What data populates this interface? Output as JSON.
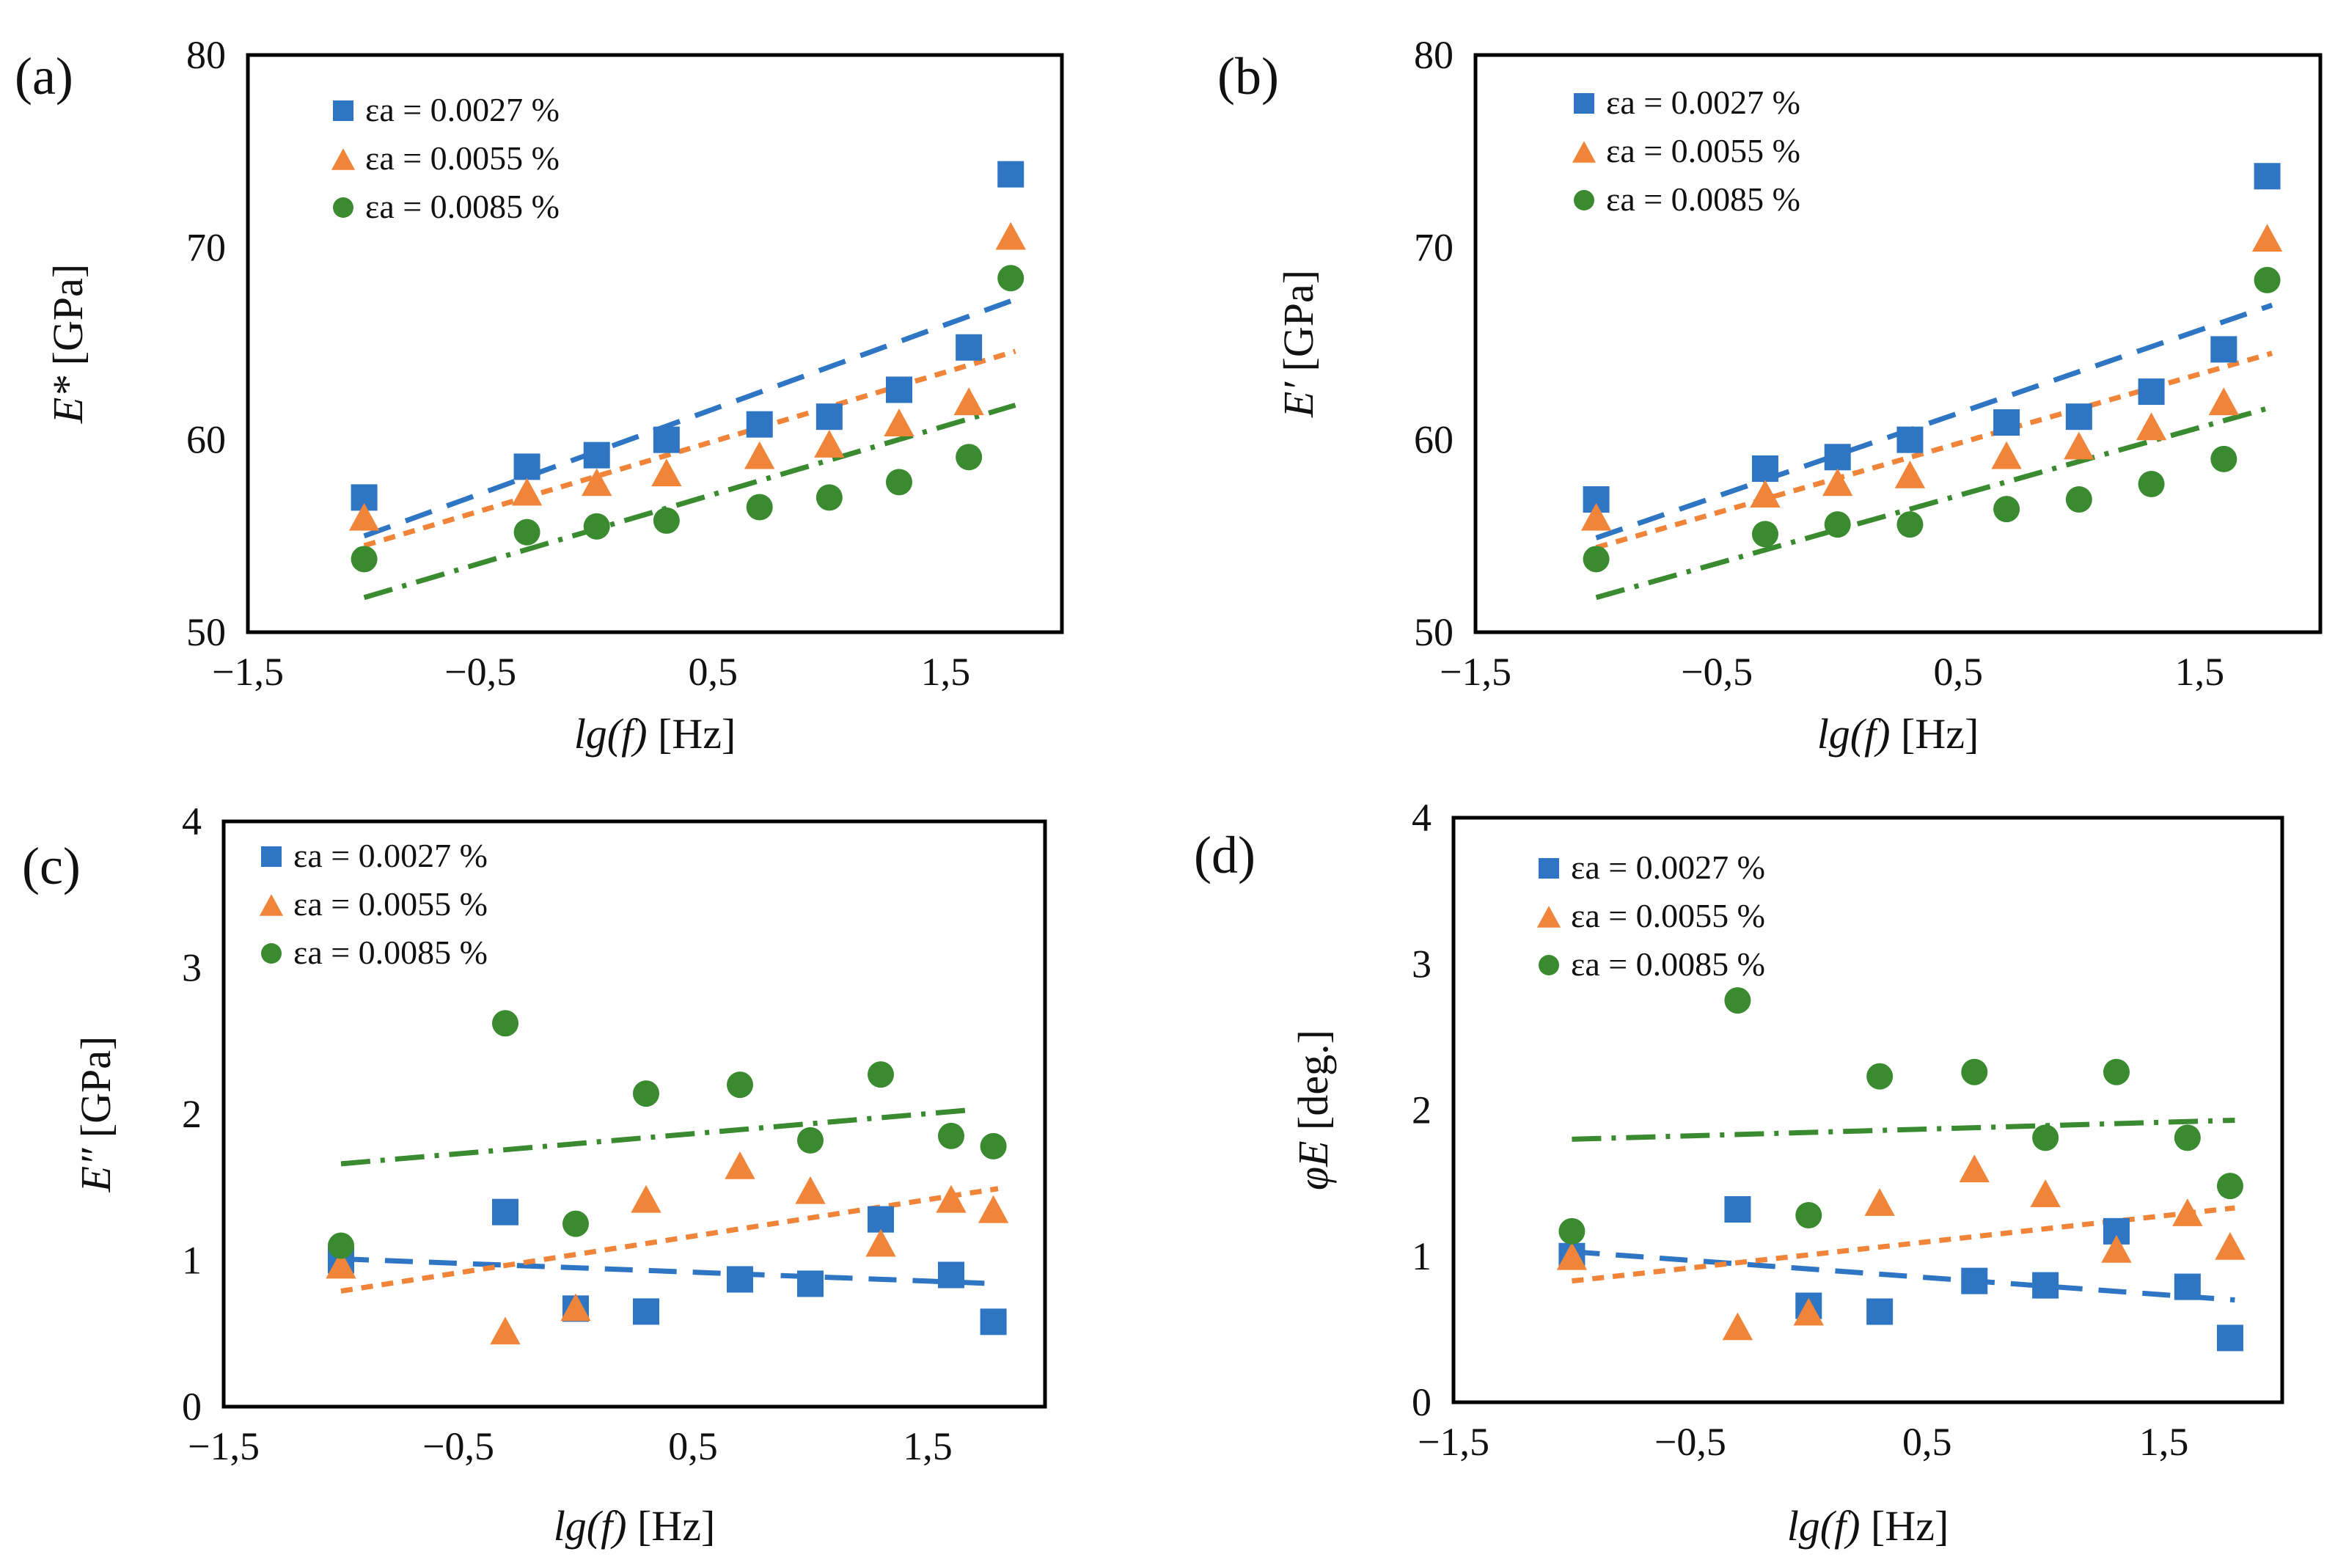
{
  "figure": {
    "colors": {
      "series1": "#2e75c4",
      "series2": "#f08439",
      "series3": "#3a8a2f"
    },
    "panels": [
      {
        "id": "a",
        "label": "(a)",
        "ylabel_main": "E*",
        "ylabel_unit": " [GPa]",
        "xlabel_main": "lg(f)",
        "xlabel_unit": " [Hz]",
        "xlim": [
          -1.5,
          2.0
        ],
        "ylim": [
          50,
          80
        ],
        "xticks": [
          -1.5,
          -0.5,
          0.5,
          1.5
        ],
        "xtick_labels": [
          "−1,5",
          "−0,5",
          "0,5",
          "1,5"
        ],
        "yticks": [
          50,
          60,
          70,
          80
        ],
        "ytick_labels": [
          "50",
          "60",
          "70",
          "80"
        ],
        "legend": [
          "εa = 0.0027 %",
          "εa = 0.0055 %",
          "εa = 0.0085 %"
        ],
        "series": [
          {
            "name": "εa = 0.0027 %",
            "marker": "square",
            "color": "#2e75c4",
            "x": [
              -1.0,
              -0.3,
              0.0,
              0.3,
              0.7,
              1.0,
              1.3,
              1.6,
              1.78
            ],
            "y": [
              57.0,
              58.6,
              59.2,
              60.0,
              60.8,
              61.2,
              62.6,
              64.8,
              73.8
            ],
            "trend": {
              "x": [
                -1.0,
                1.8
              ],
              "y": [
                55.0,
                67.3
              ],
              "dash": "long"
            }
          },
          {
            "name": "εa = 0.0055 %",
            "marker": "triangle",
            "color": "#f08439",
            "x": [
              -1.0,
              -0.3,
              0.0,
              0.3,
              0.7,
              1.0,
              1.3,
              1.6,
              1.78
            ],
            "y": [
              56.0,
              57.3,
              57.8,
              58.3,
              59.2,
              59.8,
              60.9,
              62.0,
              70.6
            ],
            "trend": {
              "x": [
                -1.0,
                1.8
              ],
              "y": [
                54.5,
                64.6
              ],
              "dash": "short"
            }
          },
          {
            "name": "εa = 0.0085 %",
            "marker": "circle",
            "color": "#3a8a2f",
            "x": [
              -1.0,
              -0.3,
              0.0,
              0.3,
              0.7,
              1.0,
              1.3,
              1.6,
              1.78
            ],
            "y": [
              53.8,
              55.2,
              55.5,
              55.8,
              56.5,
              57.0,
              57.8,
              59.1,
              68.4
            ],
            "trend": {
              "x": [
                -1.0,
                1.8
              ],
              "y": [
                51.8,
                61.8
              ],
              "dash": "dashdot"
            }
          }
        ]
      },
      {
        "id": "b",
        "label": "(b)",
        "ylabel_main": "E′",
        "ylabel_unit": " [GPa]",
        "xlabel_main": "lg(f)",
        "xlabel_unit": " [Hz]",
        "xlim": [
          -1.5,
          2.0
        ],
        "ylim": [
          50,
          80
        ],
        "xticks": [
          -1.5,
          -0.5,
          0.5,
          1.5
        ],
        "xtick_labels": [
          "−1,5",
          "−0,5",
          "0,5",
          "1,5"
        ],
        "yticks": [
          50,
          60,
          70,
          80
        ],
        "ytick_labels": [
          "50",
          "60",
          "70",
          "80"
        ],
        "legend": [
          "εa = 0.0027 %",
          "εa = 0.0055 %",
          "εa = 0.0085 %"
        ],
        "series": [
          {
            "name": "εa = 0.0027 %",
            "marker": "square",
            "color": "#2e75c4",
            "x": [
              -1.0,
              -0.3,
              0.0,
              0.3,
              0.7,
              1.0,
              1.3,
              1.6,
              1.78
            ],
            "y": [
              56.9,
              58.5,
              59.1,
              60.0,
              60.9,
              61.2,
              62.5,
              64.7,
              73.7
            ],
            "trend": {
              "x": [
                -1.0,
                1.8
              ],
              "y": [
                54.9,
                67.0
              ],
              "dash": "long"
            }
          },
          {
            "name": "εa = 0.0055 %",
            "marker": "triangle",
            "color": "#f08439",
            "x": [
              -1.0,
              -0.3,
              0.0,
              0.3,
              0.7,
              1.0,
              1.3,
              1.6,
              1.78
            ],
            "y": [
              56.0,
              57.2,
              57.8,
              58.2,
              59.2,
              59.7,
              60.7,
              62.0,
              70.5
            ],
            "trend": {
              "x": [
                -1.0,
                1.8
              ],
              "y": [
                54.4,
                64.5
              ],
              "dash": "short"
            }
          },
          {
            "name": "εa = 0.0085 %",
            "marker": "circle",
            "color": "#3a8a2f",
            "x": [
              -1.0,
              -0.3,
              0.0,
              0.3,
              0.7,
              1.0,
              1.3,
              1.6,
              1.78
            ],
            "y": [
              53.8,
              55.1,
              55.6,
              55.6,
              56.4,
              56.9,
              57.7,
              59.0,
              68.3
            ],
            "trend": {
              "x": [
                -1.0,
                1.8
              ],
              "y": [
                51.8,
                61.7
              ],
              "dash": "dashdot"
            }
          }
        ]
      },
      {
        "id": "c",
        "label": "(c)",
        "ylabel_main": "E″",
        "ylabel_unit": " [GPa]",
        "xlabel_main": "lg(f)",
        "xlabel_unit": " [Hz]",
        "xlim": [
          -1.5,
          2.0
        ],
        "ylim": [
          0,
          4
        ],
        "xticks": [
          -1.5,
          -0.5,
          0.5,
          1.5
        ],
        "xtick_labels": [
          "−1,5",
          "−0,5",
          "0,5",
          "1,5"
        ],
        "yticks": [
          0,
          1,
          2,
          3,
          4
        ],
        "ytick_labels": [
          "0",
          "1",
          "2",
          "3",
          "4"
        ],
        "legend": [
          "εa = 0.0027 %",
          "εa = 0.0055 %",
          "εa = 0.0085 %"
        ],
        "series": [
          {
            "name": "εa = 0.0027 %",
            "marker": "square",
            "color": "#2e75c4",
            "x": [
              -1.0,
              -0.3,
              0.0,
              0.3,
              0.7,
              1.0,
              1.3,
              1.6,
              1.78
            ],
            "y": [
              1.0,
              1.33,
              0.67,
              0.65,
              0.87,
              0.84,
              1.28,
              0.9,
              0.58
            ],
            "trend": {
              "x": [
                -1.0,
                1.8
              ],
              "y": [
                1.01,
                0.84
              ],
              "dash": "long"
            }
          },
          {
            "name": "εa = 0.0055 %",
            "marker": "triangle",
            "color": "#f08439",
            "x": [
              -1.0,
              -0.3,
              0.0,
              0.3,
              0.7,
              1.0,
              1.3,
              1.6,
              1.78
            ],
            "y": [
              0.97,
              0.52,
              0.68,
              1.42,
              1.65,
              1.48,
              1.12,
              1.42,
              1.35
            ],
            "trend": {
              "x": [
                -1.0,
                1.8
              ],
              "y": [
                0.79,
                1.49
              ],
              "dash": "short"
            }
          },
          {
            "name": "εa = 0.0085 %",
            "marker": "circle",
            "color": "#3a8a2f",
            "x": [
              -1.0,
              -0.3,
              0.0,
              0.3,
              0.7,
              1.0,
              1.3,
              1.6,
              1.78
            ],
            "y": [
              1.1,
              2.62,
              1.25,
              2.14,
              2.2,
              1.82,
              2.27,
              1.85,
              1.78
            ],
            "trend": {
              "x": [
                -1.0,
                1.7
              ],
              "y": [
                1.66,
                2.03
              ],
              "dash": "dashdot"
            }
          }
        ]
      },
      {
        "id": "d",
        "label": "(d)",
        "ylabel_main": "φE",
        "ylabel_unit": " [deg.]",
        "xlabel_main": "lg(f)",
        "xlabel_unit": " [Hz]",
        "xlim": [
          -1.5,
          2.0
        ],
        "ylim": [
          0,
          4
        ],
        "xticks": [
          -1.5,
          -0.5,
          0.5,
          1.5
        ],
        "xtick_labels": [
          "−1,5",
          "−0,5",
          "0,5",
          "1,5"
        ],
        "yticks": [
          0,
          1,
          2,
          3,
          4
        ],
        "ytick_labels": [
          "0",
          "1",
          "2",
          "3",
          "4"
        ],
        "legend": [
          "εa = 0.0027 %",
          "εa = 0.0055 %",
          "εa = 0.0085 %"
        ],
        "series": [
          {
            "name": "εa = 0.0027 %",
            "marker": "square",
            "color": "#2e75c4",
            "x": [
              -1.0,
              -0.3,
              0.0,
              0.3,
              0.7,
              1.0,
              1.3,
              1.6,
              1.78
            ],
            "y": [
              1.0,
              1.32,
              0.66,
              0.62,
              0.83,
              0.8,
              1.17,
              0.79,
              0.44
            ],
            "trend": {
              "x": [
                -1.0,
                1.8
              ],
              "y": [
                1.03,
                0.7
              ],
              "dash": "long"
            }
          },
          {
            "name": "εa = 0.0055 %",
            "marker": "triangle",
            "color": "#f08439",
            "x": [
              -1.0,
              -0.3,
              0.0,
              0.3,
              0.7,
              1.0,
              1.3,
              1.6,
              1.78
            ],
            "y": [
              1.0,
              0.52,
              0.62,
              1.37,
              1.6,
              1.43,
              1.05,
              1.3,
              1.07
            ],
            "trend": {
              "x": [
                -1.0,
                1.8
              ],
              "y": [
                0.83,
                1.33
              ],
              "dash": "short"
            }
          },
          {
            "name": "εa = 0.0085 %",
            "marker": "circle",
            "color": "#3a8a2f",
            "x": [
              -1.0,
              -0.3,
              0.0,
              0.3,
              0.7,
              1.0,
              1.3,
              1.6,
              1.78
            ],
            "y": [
              1.17,
              2.75,
              1.28,
              2.23,
              2.26,
              1.81,
              2.26,
              1.81,
              1.48
            ],
            "trend": {
              "x": [
                -1.0,
                1.8
              ],
              "y": [
                1.8,
                1.93
              ],
              "dash": "dashdot"
            }
          }
        ]
      }
    ]
  },
  "chart_data": [
    {
      "type": "scatter",
      "title": "(a)",
      "xlabel": "lg(f) [Hz]",
      "ylabel": "E* [GPa]",
      "xlim": [
        -1.5,
        2.0
      ],
      "ylim": [
        50,
        80
      ],
      "legend": "top-left",
      "series": [
        {
          "name": "εa = 0.0027 %",
          "x": [
            -1.0,
            -0.3,
            0.0,
            0.3,
            0.7,
            1.0,
            1.3,
            1.6,
            1.78
          ],
          "y": [
            57.0,
            58.6,
            59.2,
            60.0,
            60.8,
            61.2,
            62.6,
            64.8,
            73.8
          ]
        },
        {
          "name": "εa = 0.0055 %",
          "x": [
            -1.0,
            -0.3,
            0.0,
            0.3,
            0.7,
            1.0,
            1.3,
            1.6,
            1.78
          ],
          "y": [
            56.0,
            57.3,
            57.8,
            58.3,
            59.2,
            59.8,
            60.9,
            62.0,
            70.6
          ]
        },
        {
          "name": "εa = 0.0085 %",
          "x": [
            -1.0,
            -0.3,
            0.0,
            0.3,
            0.7,
            1.0,
            1.3,
            1.6,
            1.78
          ],
          "y": [
            53.8,
            55.2,
            55.5,
            55.8,
            56.5,
            57.0,
            57.8,
            59.1,
            68.4
          ]
        }
      ]
    },
    {
      "type": "scatter",
      "title": "(b)",
      "xlabel": "lg(f) [Hz]",
      "ylabel": "E′ [GPa]",
      "xlim": [
        -1.5,
        2.0
      ],
      "ylim": [
        50,
        80
      ],
      "legend": "top-left",
      "series": [
        {
          "name": "εa = 0.0027 %",
          "x": [
            -1.0,
            -0.3,
            0.0,
            0.3,
            0.7,
            1.0,
            1.3,
            1.6,
            1.78
          ],
          "y": [
            56.9,
            58.5,
            59.1,
            60.0,
            60.9,
            61.2,
            62.5,
            64.7,
            73.7
          ]
        },
        {
          "name": "εa = 0.0055 %",
          "x": [
            -1.0,
            -0.3,
            0.0,
            0.3,
            0.7,
            1.0,
            1.3,
            1.6,
            1.78
          ],
          "y": [
            56.0,
            57.2,
            57.8,
            58.2,
            59.2,
            59.7,
            60.7,
            62.0,
            70.5
          ]
        },
        {
          "name": "εa = 0.0085 %",
          "x": [
            -1.0,
            -0.3,
            0.0,
            0.3,
            0.7,
            1.0,
            1.3,
            1.6,
            1.78
          ],
          "y": [
            53.8,
            55.1,
            55.6,
            55.6,
            56.4,
            56.9,
            57.7,
            59.0,
            68.3
          ]
        }
      ]
    },
    {
      "type": "scatter",
      "title": "(c)",
      "xlabel": "lg(f) [Hz]",
      "ylabel": "E″ [GPa]",
      "xlim": [
        -1.5,
        2.0
      ],
      "ylim": [
        0,
        4
      ],
      "legend": "top-left",
      "series": [
        {
          "name": "εa = 0.0027 %",
          "x": [
            -1.0,
            -0.3,
            0.0,
            0.3,
            0.7,
            1.0,
            1.3,
            1.6,
            1.78
          ],
          "y": [
            1.0,
            1.33,
            0.67,
            0.65,
            0.87,
            0.84,
            1.28,
            0.9,
            0.58
          ]
        },
        {
          "name": "εa = 0.0055 %",
          "x": [
            -1.0,
            -0.3,
            0.0,
            0.3,
            0.7,
            1.0,
            1.3,
            1.6,
            1.78
          ],
          "y": [
            0.97,
            0.52,
            0.68,
            1.42,
            1.65,
            1.48,
            1.12,
            1.42,
            1.35
          ]
        },
        {
          "name": "εa = 0.0085 %",
          "x": [
            -1.0,
            -0.3,
            0.0,
            0.3,
            0.7,
            1.0,
            1.3,
            1.6,
            1.78
          ],
          "y": [
            1.1,
            2.62,
            1.25,
            2.14,
            2.2,
            1.82,
            2.27,
            1.85,
            1.78
          ]
        }
      ]
    },
    {
      "type": "scatter",
      "title": "(d)",
      "xlabel": "lg(f) [Hz]",
      "ylabel": "φE [deg.]",
      "xlim": [
        -1.5,
        2.0
      ],
      "ylim": [
        0,
        4
      ],
      "legend": "top-left",
      "series": [
        {
          "name": "εa = 0.0027 %",
          "x": [
            -1.0,
            -0.3,
            0.0,
            0.3,
            0.7,
            1.0,
            1.3,
            1.6,
            1.78
          ],
          "y": [
            1.0,
            1.32,
            0.66,
            0.62,
            0.83,
            0.8,
            1.17,
            0.79,
            0.44
          ]
        },
        {
          "name": "εa = 0.0055 %",
          "x": [
            -1.0,
            -0.3,
            0.0,
            0.3,
            0.7,
            1.0,
            1.3,
            1.6,
            1.78
          ],
          "y": [
            1.0,
            0.52,
            0.62,
            1.37,
            1.6,
            1.43,
            1.05,
            1.3,
            1.07
          ]
        },
        {
          "name": "εa = 0.0085 %",
          "x": [
            -1.0,
            -0.3,
            0.0,
            0.3,
            0.7,
            1.0,
            1.3,
            1.6,
            1.78
          ],
          "y": [
            1.17,
            2.75,
            1.28,
            2.23,
            2.26,
            1.81,
            2.26,
            1.81,
            1.48
          ]
        }
      ]
    }
  ]
}
